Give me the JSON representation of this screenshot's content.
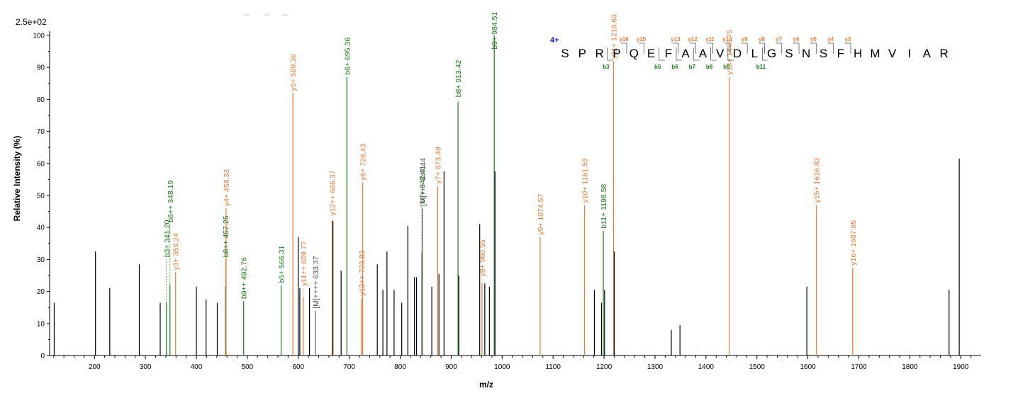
{
  "chart_data": {
    "type": "bar",
    "scale_label": "2.5e+02",
    "xlabel": "m/z",
    "ylabel": "Relative   Intensity (%)",
    "xlim": [
      112,
      1940
    ],
    "ylim": [
      0,
      100
    ],
    "x_ticks": [
      200,
      300,
      400,
      500,
      600,
      700,
      800,
      900,
      1000,
      1100,
      1200,
      1300,
      1400,
      1500,
      1600,
      1700,
      1800,
      1900
    ],
    "y_ticks": [
      0,
      10,
      20,
      30,
      40,
      50,
      60,
      70,
      80,
      90,
      100
    ],
    "colors": {
      "b": "#1a7a1a",
      "y": "#e07b39",
      "other": "#000000",
      "M": "#555555",
      "charge": "#1414b4"
    },
    "peaks": [
      {
        "mz": 121,
        "i": 16.5,
        "c": "other"
      },
      {
        "mz": 202,
        "i": 32.5,
        "c": "other"
      },
      {
        "mz": 230,
        "i": 21,
        "c": "other"
      },
      {
        "mz": 288,
        "i": 28.5,
        "c": "other"
      },
      {
        "mz": 329,
        "i": 16.5,
        "c": "other"
      },
      {
        "mz": 341.2,
        "i": 16.5,
        "c": "b",
        "label": "b3+ 341.20",
        "lt": 30
      },
      {
        "mz": 348.19,
        "i": 22,
        "c": "b",
        "label": "b6++ 348.19",
        "lt": 41
      },
      {
        "mz": 359.24,
        "i": 26,
        "c": "y",
        "label": "y3+ 359.24",
        "lt": 26
      },
      {
        "mz": 400,
        "i": 21.5,
        "c": "other"
      },
      {
        "mz": 419,
        "i": 17.5,
        "c": "other"
      },
      {
        "mz": 441,
        "i": 16.5,
        "c": "other"
      },
      {
        "mz": 457.25,
        "i": 21.5,
        "c": "b",
        "label": "b8++ 457.25",
        "lt": 30
      },
      {
        "mz": 458.33,
        "i": 46,
        "c": "y",
        "label": "y4+ 458.33",
        "lt": 46
      },
      {
        "mz": 492.76,
        "i": 17,
        "c": "b",
        "label": "b9++ 492.76",
        "lt": 17
      },
      {
        "mz": 566.31,
        "i": 22,
        "c": "b",
        "label": "b5+ 566.31",
        "lt": 22
      },
      {
        "mz": 589.36,
        "i": 82,
        "c": "y",
        "label": "y5+ 589.36",
        "lt": 82
      },
      {
        "mz": 600,
        "i": 37,
        "c": "other"
      },
      {
        "mz": 603,
        "i": 21,
        "c": "other"
      },
      {
        "mz": 609.77,
        "i": 18,
        "c": "y",
        "label": "y11++ 609.77",
        "lt": 21
      },
      {
        "mz": 622,
        "i": 21,
        "c": "other"
      },
      {
        "mz": 633.37,
        "i": 14,
        "c": "M",
        "label": "[M]++++ 633.37",
        "lt": 14
      },
      {
        "mz": 666.37,
        "i": 42,
        "c": "y",
        "label": "y12++ 666.37",
        "lt": 43
      },
      {
        "mz": 668,
        "i": 42,
        "c": "other"
      },
      {
        "mz": 684,
        "i": 26.5,
        "c": "other"
      },
      {
        "mz": 695.36,
        "i": 87,
        "c": "b",
        "label": "b6+ 695.36",
        "lt": 87
      },
      {
        "mz": 723.83,
        "i": 18,
        "c": "y",
        "label": "y13++ 723.83",
        "lt": 18
      },
      {
        "mz": 726.43,
        "i": 54,
        "c": "y",
        "label": "y6+ 726.43",
        "lt": 54
      },
      {
        "mz": 755,
        "i": 28.5,
        "c": "other"
      },
      {
        "mz": 766,
        "i": 20.5,
        "c": "other"
      },
      {
        "mz": 774,
        "i": 32.5,
        "c": "other"
      },
      {
        "mz": 788,
        "i": 20.5,
        "c": "other"
      },
      {
        "mz": 803,
        "i": 16.5,
        "c": "other"
      },
      {
        "mz": 815,
        "i": 40.5,
        "c": "other"
      },
      {
        "mz": 828,
        "i": 24.5,
        "c": "other"
      },
      {
        "mz": 832,
        "i": 24.5,
        "c": "other"
      },
      {
        "mz": 842.41,
        "i": 32,
        "c": "b",
        "label": "b7+ 842.41",
        "lt": 47
      },
      {
        "mz": 843.44,
        "i": 46,
        "c": "M",
        "label": "[M]+++ 843.44",
        "lt": 46
      },
      {
        "mz": 862,
        "i": 21.5,
        "c": "other"
      },
      {
        "mz": 873.49,
        "i": 53,
        "c": "y",
        "label": "y7+ 873.49",
        "lt": 53
      },
      {
        "mz": 876,
        "i": 25.5,
        "c": "other"
      },
      {
        "mz": 886,
        "i": 57.5,
        "c": "other"
      },
      {
        "mz": 913.42,
        "i": 79,
        "c": "b",
        "label": "b8+ 913.42",
        "lt": 80
      },
      {
        "mz": 915,
        "i": 25,
        "c": "other"
      },
      {
        "mz": 956,
        "i": 41,
        "c": "other"
      },
      {
        "mz": 960.55,
        "i": 22.5,
        "c": "y",
        "label": "y8+ 960.55",
        "lt": 24
      },
      {
        "mz": 966,
        "i": 22.5,
        "c": "other"
      },
      {
        "mz": 975,
        "i": 21.5,
        "c": "other"
      },
      {
        "mz": 984.51,
        "i": 100,
        "c": "b",
        "label": "b9+ 984.51",
        "lt": 95
      },
      {
        "mz": 986,
        "i": 57.5,
        "c": "other"
      },
      {
        "mz": 1074.57,
        "i": 37,
        "c": "y",
        "label": "y9+ 1074.57",
        "lt": 37
      },
      {
        "mz": 1161.59,
        "i": 47,
        "c": "y",
        "label": "y10+ 1161.59",
        "lt": 47
      },
      {
        "mz": 1181,
        "i": 20.5,
        "c": "other"
      },
      {
        "mz": 1195,
        "i": 16.5,
        "c": "other"
      },
      {
        "mz": 1198.58,
        "i": 39,
        "c": "b",
        "label": "b11+ 1198.58",
        "lt": 39
      },
      {
        "mz": 1201,
        "i": 20.5,
        "c": "other"
      },
      {
        "mz": 1218.63,
        "i": 92,
        "c": "y",
        "label": "y11+ 1218.63",
        "lt": 92
      },
      {
        "mz": 1220,
        "i": 32.5,
        "c": "other"
      },
      {
        "mz": 1332,
        "i": 8,
        "c": "other"
      },
      {
        "mz": 1349,
        "i": 9.5,
        "c": "other"
      },
      {
        "mz": 1445.75,
        "i": 87,
        "c": "y",
        "label": "y13+ 1445.75",
        "lt": 87
      },
      {
        "mz": 1598,
        "i": 21.5,
        "c": "other"
      },
      {
        "mz": 1616.83,
        "i": 47,
        "c": "y",
        "label": "y15+ 1616.83",
        "lt": 47
      },
      {
        "mz": 1687.85,
        "i": 27.5,
        "c": "y",
        "label": "y16+ 1687.85",
        "lt": 27.5
      },
      {
        "mz": 1877,
        "i": 20.5,
        "c": "other"
      },
      {
        "mz": 1897,
        "i": 61.5,
        "c": "other"
      }
    ],
    "sequence": {
      "charge": "4+",
      "residues": [
        "S",
        "P",
        "R",
        "P",
        "Q",
        "E",
        "F",
        "A",
        "A",
        "V",
        "D",
        "L",
        "G",
        "S",
        "N",
        "S",
        "F",
        "H",
        "M",
        "V",
        "I",
        "A",
        "R"
      ],
      "y_marks": [
        {
          "after": 4,
          "label": "y16"
        },
        {
          "after": 5,
          "label": "y15"
        },
        {
          "after": 7,
          "label": "y13"
        },
        {
          "after": 8,
          "label": "y12"
        },
        {
          "after": 9,
          "label": "y11"
        },
        {
          "after": 10,
          "label": "y10"
        },
        {
          "after": 11,
          "label": "y9"
        },
        {
          "after": 12,
          "label": "y8"
        },
        {
          "after": 13,
          "label": "y7"
        },
        {
          "after": 14,
          "label": "y6"
        },
        {
          "after": 15,
          "label": "y5"
        },
        {
          "after": 16,
          "label": "y4"
        },
        {
          "after": 17,
          "label": "y3"
        }
      ],
      "b_marks": [
        {
          "after": 3,
          "label": "b3"
        },
        {
          "after": 6,
          "label": "b5"
        },
        {
          "after": 7,
          "label": "b6"
        },
        {
          "after": 8,
          "label": "b7"
        },
        {
          "after": 9,
          "label": "b8"
        },
        {
          "after": 10,
          "label": "b9"
        },
        {
          "after": 12,
          "label": "b11"
        }
      ]
    }
  }
}
